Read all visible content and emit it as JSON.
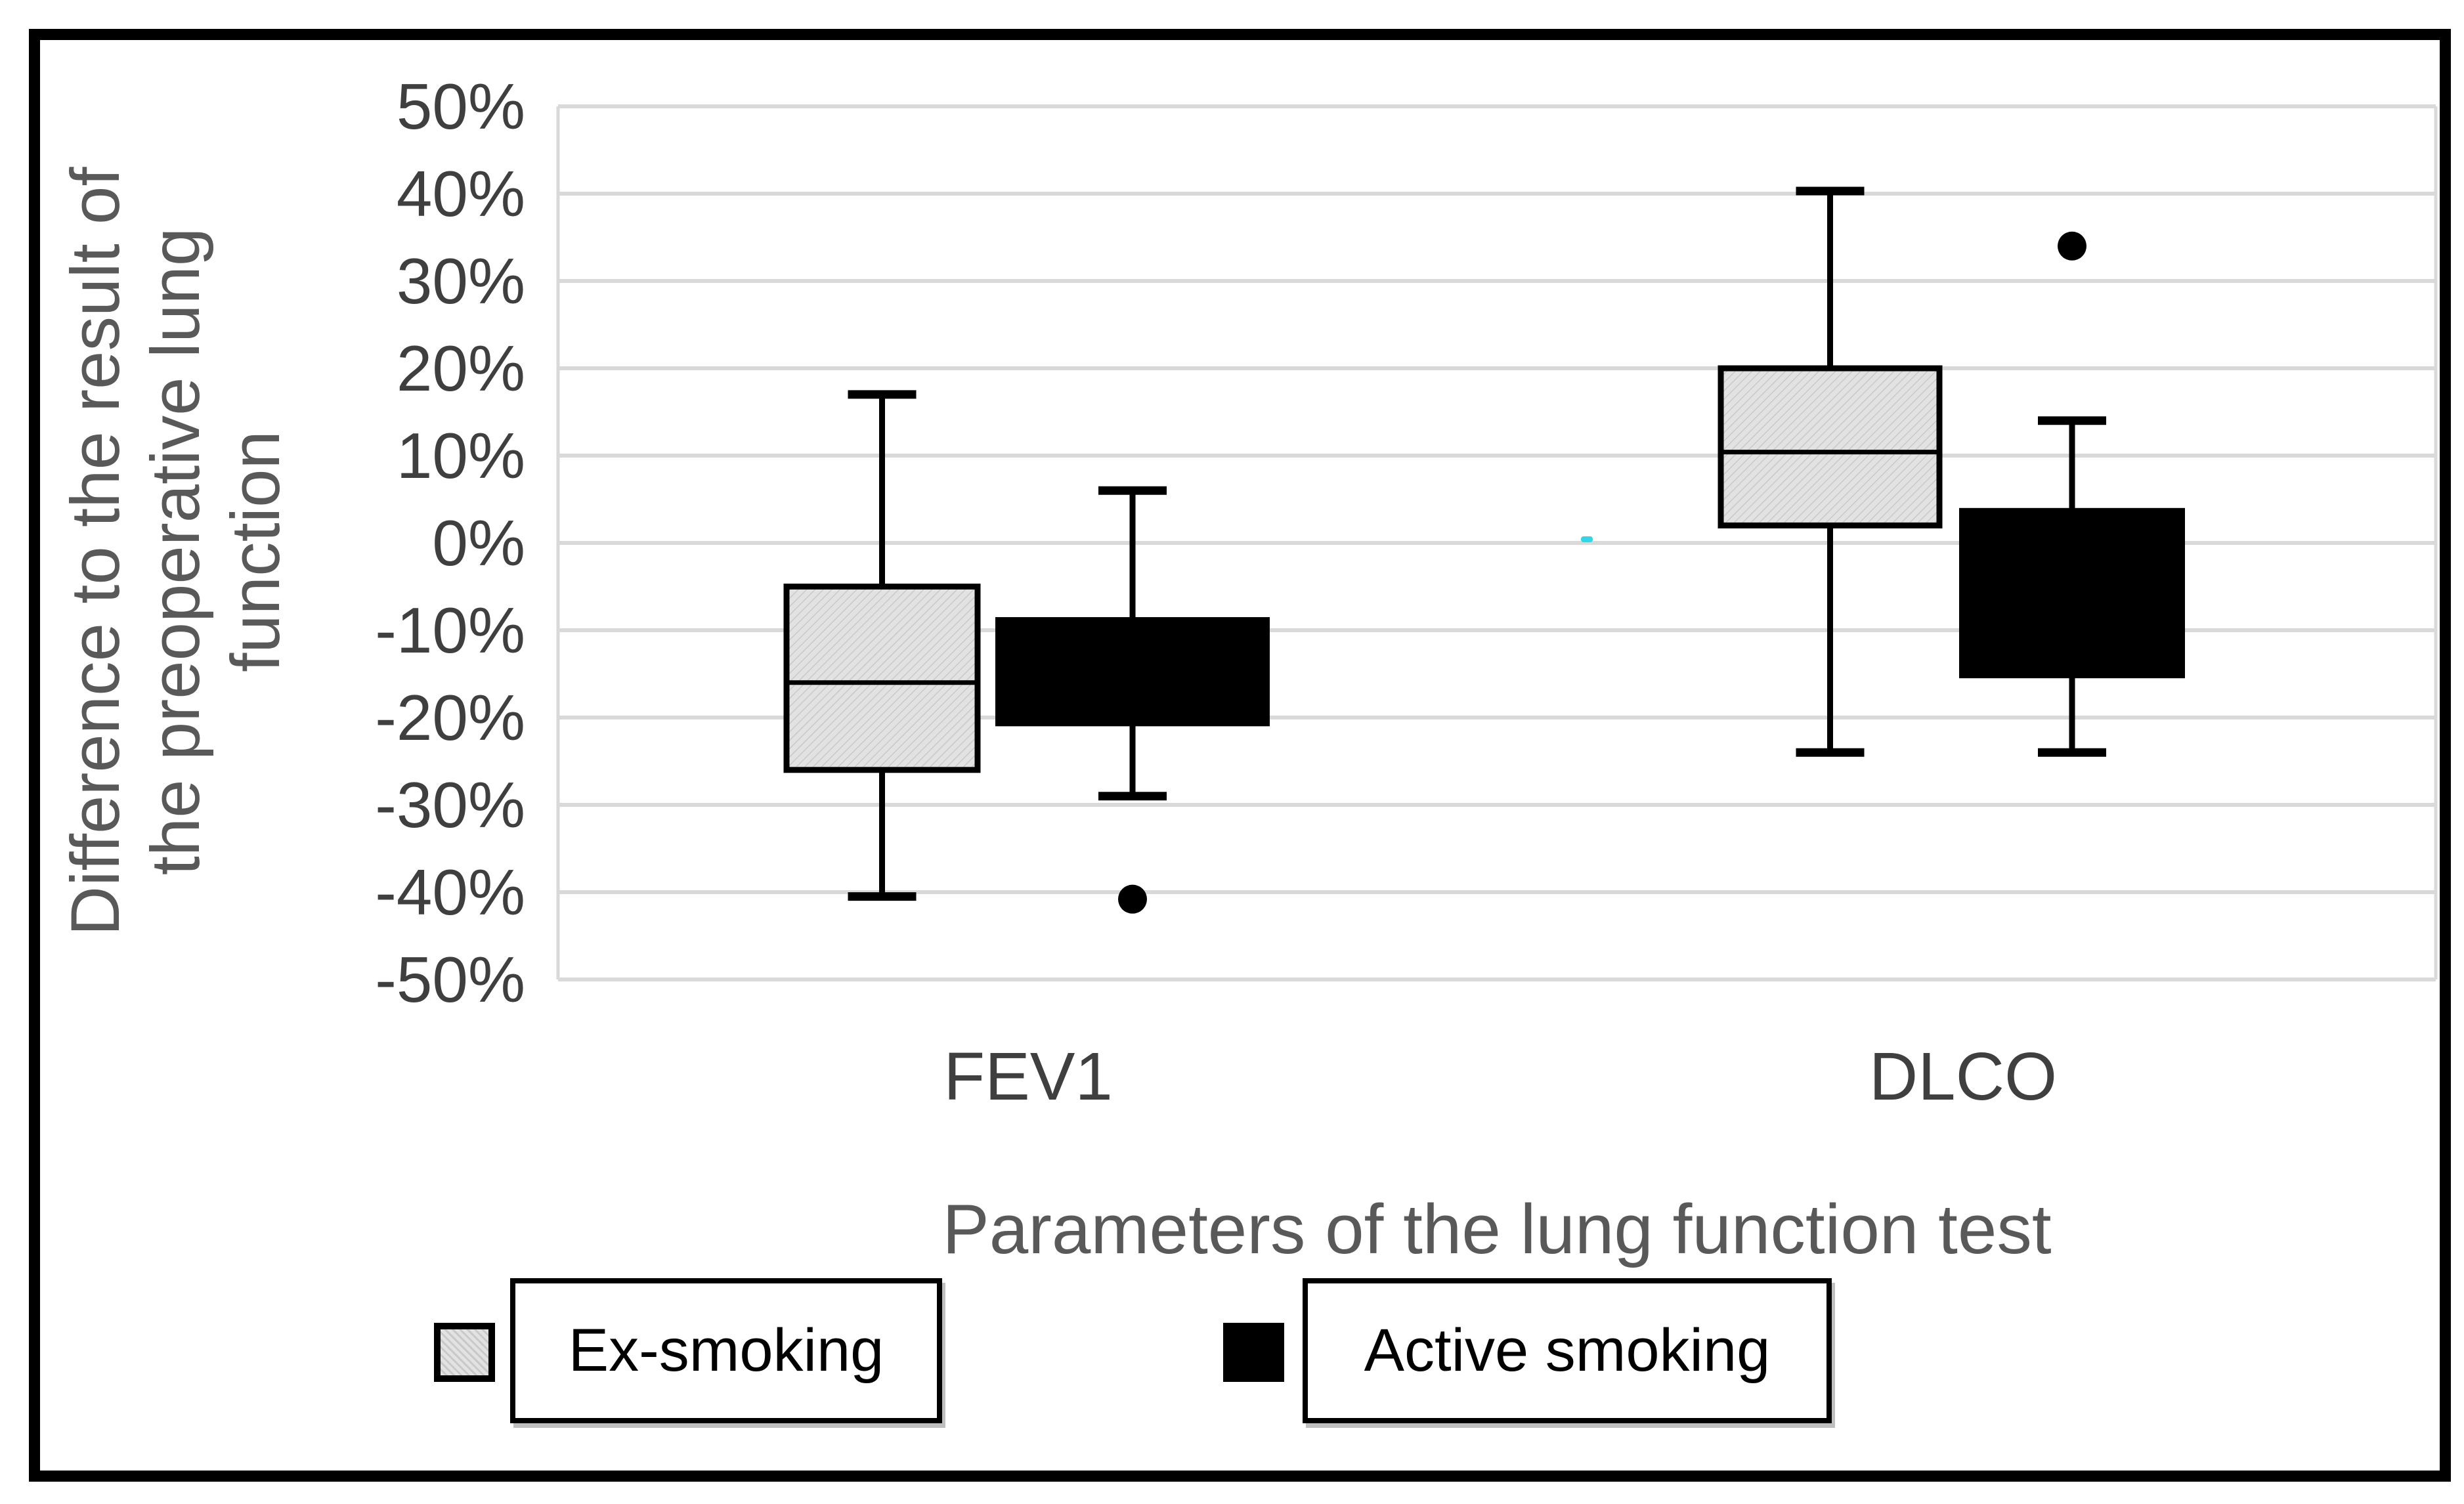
{
  "figure": {
    "y_axis": {
      "title_lines": [
        "Difference to the result of",
        "the preoperative lung",
        "function"
      ],
      "tick_labels": [
        "50%",
        "40%",
        "30%",
        "20%",
        "10%",
        "0%",
        "-10%",
        "-20%",
        "-30%",
        "-40%",
        "-50%"
      ],
      "min": -50,
      "max": 50,
      "step": 10,
      "unit": "%"
    },
    "x_axis": {
      "title": "Parameters of the lung function test",
      "categories": [
        "FEV1",
        "DLCO"
      ]
    },
    "legend": [
      {
        "label": "Ex-smoking",
        "swatch": "hatched-light-gray",
        "color": "#dcdcdc"
      },
      {
        "label": "Active smoking",
        "swatch": "solid-black",
        "color": "#000000"
      }
    ],
    "colors": {
      "grid": "#d9d9d9",
      "axis_text": "#3f3f3f",
      "title_text": "#595959",
      "box_gray_fill": "#e2e2e2",
      "box_gray_hatch": "#c9c9c9",
      "box_black": "#000000",
      "stroke": "#000000",
      "artifact_cyan": "#2bd9e8"
    }
  },
  "chart_data": {
    "type": "boxplot",
    "title": "",
    "xlabel": "Parameters of the lung function test",
    "ylabel": "Difference to the result of the preoperative lung function",
    "categories": [
      "FEV1",
      "DLCO"
    ],
    "ylim": [
      -50,
      50
    ],
    "ytick_step": 10,
    "grid": true,
    "legend_position": "bottom",
    "series": [
      {
        "name": "Ex-smoking",
        "style": "hatched-light-gray",
        "boxes": [
          {
            "category": "FEV1",
            "whisker_low": -40.5,
            "q1": -26,
            "median": -16,
            "q3": -5,
            "whisker_high": 17,
            "outliers": []
          },
          {
            "category": "DLCO",
            "whisker_low": -24,
            "q1": 2,
            "median": 10.4,
            "q3": 20,
            "whisker_high": 40.3,
            "outliers": []
          }
        ]
      },
      {
        "name": "Active smoking",
        "style": "solid-black",
        "boxes": [
          {
            "category": "FEV1",
            "whisker_low": -29,
            "q1": -21,
            "median": null,
            "q3": -8.5,
            "whisker_high": 6,
            "outliers": [
              -40.8
            ]
          },
          {
            "category": "DLCO",
            "whisker_low": -24,
            "q1": -15.5,
            "median": null,
            "q3": 4,
            "whisker_high": 14,
            "outliers": [
              34
            ]
          }
        ]
      }
    ],
    "annotations": [
      {
        "type": "artifact-mark",
        "color": "#2bd9e8",
        "near_value": 0.8,
        "between_groups": true
      }
    ]
  }
}
